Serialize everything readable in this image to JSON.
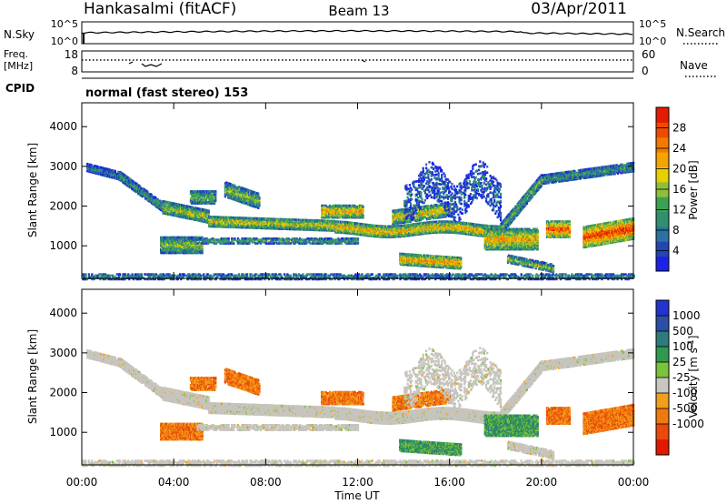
{
  "header": {
    "station": "Hankasalmi (fitACF)",
    "beam": "Beam 13",
    "date": "03/Apr/2011"
  },
  "nsky": {
    "label": "N.Sky",
    "ticks": [
      "10^5",
      "10^0"
    ],
    "right_ticks": [
      "10^5",
      "10^0"
    ],
    "right_label": "N.Search"
  },
  "freq": {
    "label_line1": "Freq.",
    "label_line2": "[MHz]",
    "ticks": [
      "18",
      "8"
    ],
    "right_ticks": [
      "60",
      "0"
    ],
    "right_label": "Nave"
  },
  "cpid": {
    "label": "CPID",
    "text": "normal (fast stereo) 153"
  },
  "colors": {
    "power": [
      "#1a22e8",
      "#2246b4",
      "#2a72a0",
      "#2f8f6f",
      "#3aa352",
      "#8fbf3a",
      "#e8d000",
      "#f5a400",
      "#f27a00",
      "#ee4a00",
      "#e41b00"
    ],
    "velocity": [
      "#2233d0",
      "#2c4fa6",
      "#2f7a7c",
      "#2f9a4f",
      "#7ac23a",
      "#c8c8c0",
      "#f2a01a",
      "#ef7a10",
      "#ea4a08",
      "#e31800"
    ],
    "gray": "#c6c4bd"
  },
  "chart_data": [
    {
      "type": "heatmap",
      "title": "",
      "ylabel": "Slant Range [km]",
      "ylim": [
        180,
        4600
      ],
      "y_ticks": [
        "1000",
        "2000",
        "3000",
        "4000"
      ],
      "xlim": [
        0,
        24
      ],
      "colorbar": {
        "label": "Power [dB]",
        "ticks": [
          "4",
          "8",
          "12",
          "16",
          "20",
          "24",
          "28"
        ],
        "range": [
          0,
          32
        ]
      }
    },
    {
      "type": "heatmap",
      "title": "",
      "ylabel": "Slant Range [km]",
      "ylim": [
        180,
        4600
      ],
      "y_ticks": [
        "1000",
        "2000",
        "3000",
        "4000"
      ],
      "xlim": [
        0,
        24
      ],
      "xlabel": "Time UT",
      "x_ticks": [
        "00:00",
        "04:00",
        "08:00",
        "12:00",
        "16:00",
        "20:00",
        "00:00"
      ],
      "colorbar": {
        "label": "Velocity [m s^-1]",
        "ticks": [
          "1000",
          "500",
          "100",
          "25",
          "-25",
          "-100",
          "-500",
          "-1000"
        ]
      }
    }
  ]
}
